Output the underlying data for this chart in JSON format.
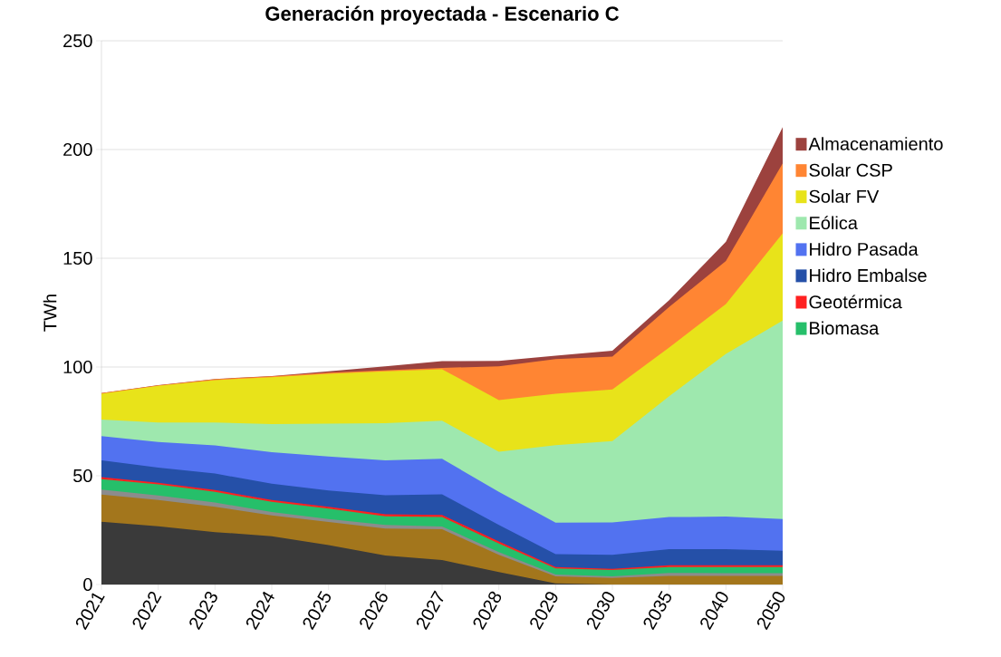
{
  "chart_data": {
    "type": "area",
    "stacked": true,
    "title": "Generación proyectada - Escenario C",
    "ylabel": "TWh",
    "categories": [
      "2021",
      "2022",
      "2023",
      "2024",
      "2025",
      "2026",
      "2027",
      "2028",
      "2029",
      "2030",
      "2035",
      "2040",
      "2050"
    ],
    "ylim": [
      0,
      250
    ],
    "yticks": [
      0,
      50,
      100,
      150,
      200,
      250
    ],
    "grid": "y",
    "legend": "right",
    "series": [
      {
        "color": "#3a3a3a",
        "values": [
          28.9,
          26.8,
          24.1,
          22.2,
          18.1,
          13.3,
          11.2,
          5.7,
          0.5,
          0,
          0,
          0,
          0
        ]
      },
      {
        "color": "#a3761c",
        "values": [
          12.4,
          12.1,
          11.6,
          9.6,
          10.6,
          12.4,
          14.2,
          7.9,
          3.2,
          3.0,
          4.0,
          4.0,
          4.0
        ]
      },
      {
        "color": "#8c8c8c",
        "values": [
          2.3,
          2.0,
          2.0,
          1.5,
          1.4,
          1.7,
          1.3,
          1.3,
          0.9,
          0.7,
          1.3,
          1.2,
          1.2
        ]
      },
      {
        "name": "Biomasa",
        "color": "#26bf6a",
        "values": [
          4.8,
          5.1,
          4.9,
          4.7,
          4.8,
          4.0,
          4.3,
          3.9,
          2.8,
          3.0,
          2.7,
          2.8,
          2.8
        ]
      },
      {
        "name": "Geotérmica",
        "color": "#ff2020",
        "values": [
          1.0,
          0.8,
          0.8,
          0.9,
          0.8,
          0.9,
          1.0,
          1.0,
          0.6,
          0.5,
          0.8,
          0.8,
          0.8
        ]
      },
      {
        "name": "Hidro Embalse",
        "color": "#2550a8",
        "values": [
          7.7,
          6.9,
          7.6,
          7.4,
          7.5,
          8.7,
          9.5,
          7.6,
          6.0,
          6.4,
          7.4,
          7.4,
          6.7
        ]
      },
      {
        "name": "Hidro Pasada",
        "color": "#5272f0",
        "values": [
          11.1,
          11.8,
          13.0,
          14.5,
          15.7,
          16.1,
          16.3,
          15.2,
          14.4,
          14.9,
          14.8,
          15.0,
          14.6
        ]
      },
      {
        "name": "Eólica",
        "color": "#9ee8ae",
        "values": [
          7.6,
          9.0,
          10.5,
          12.9,
          15.1,
          17.1,
          17.5,
          18.4,
          35.7,
          37.4,
          55.6,
          74.8,
          91.2
        ]
      },
      {
        "name": "Solar FV",
        "color": "#e8e31a",
        "values": [
          11.9,
          16.9,
          19.5,
          21.6,
          22.9,
          23.8,
          23.7,
          23.8,
          23.6,
          23.8,
          22.4,
          23.0,
          40.2
        ]
      },
      {
        "name": "Solar CSP",
        "color": "#ff8533",
        "values": [
          0.3,
          0.2,
          0.4,
          0.4,
          0.5,
          0.5,
          0.6,
          15.5,
          15.9,
          15.1,
          18.6,
          19.7,
          32.1
        ]
      },
      {
        "name": "Almacenamiento",
        "color": "#9c423e",
        "values": [
          0,
          0.1,
          0.1,
          0.1,
          0.6,
          1.8,
          3.1,
          2.5,
          1.6,
          2.7,
          3.1,
          8.9,
          16.7
        ]
      }
    ]
  }
}
